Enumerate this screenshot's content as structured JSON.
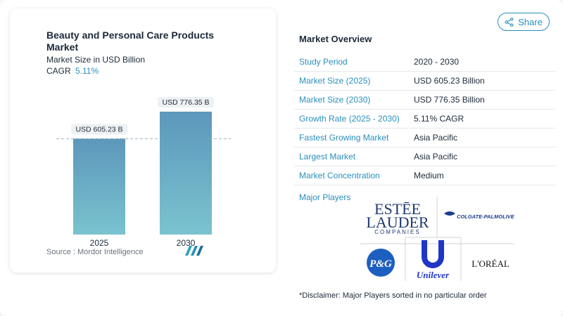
{
  "chart_data": {
    "type": "bar",
    "title": "Beauty and Personal Care Products Market",
    "subtitle": "Market Size in USD Billion",
    "categories": [
      "2025",
      "2030"
    ],
    "values": [
      605.23,
      776.35
    ],
    "value_labels": [
      "USD 605.23 B",
      "USD 776.35 B"
    ],
    "cagr_label": "CAGR",
    "cagr_value": "5.11%",
    "colors": [
      "#5f9ec0",
      "#6aa8c8"
    ]
  },
  "source": "Source :  Mordor Intelligence",
  "share": {
    "label": "Share"
  },
  "overview": {
    "title": "Market Overview",
    "rows": [
      {
        "key": "Study Period",
        "value": "2020 - 2030"
      },
      {
        "key": "Market Size (2025)",
        "value": "USD 605.23 Billion"
      },
      {
        "key": "Market Size (2030)",
        "value": "USD 776.35 Billion"
      },
      {
        "key": "Growth Rate (2025 - 2030)",
        "value": "5.11% CAGR"
      },
      {
        "key": "Fastest Growing Market",
        "value": "Asia Pacific"
      },
      {
        "key": "Largest Market",
        "value": "Asia Pacific"
      },
      {
        "key": "Market Concentration",
        "value": "Medium"
      }
    ]
  },
  "major_players": {
    "label": "Major Players",
    "logos": {
      "estee_line1": "ESTĒE",
      "estee_line2": "LAUDER",
      "estee_line3": "COMPANIES",
      "colgate": "COLGATE-PALMOLIVE",
      "pg": "P&G",
      "unilever": "Unilever",
      "loreal": "L'ORÉAL"
    }
  },
  "disclaimer": "*Disclaimer: Major Players sorted in no particular order"
}
